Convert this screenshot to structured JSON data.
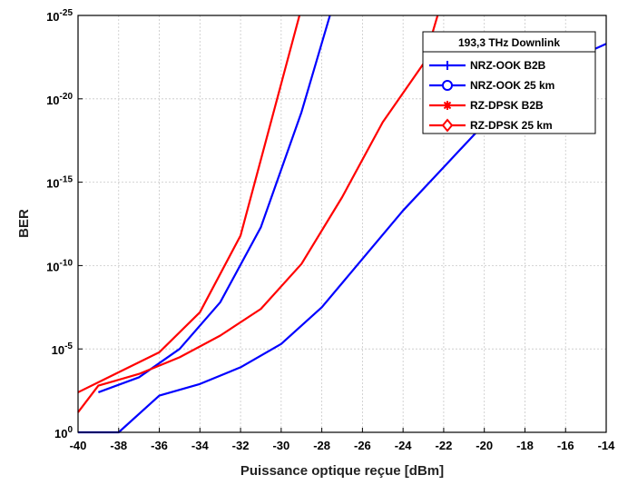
{
  "chart_data": {
    "type": "line",
    "title": "",
    "xlabel": "Puissance optique reçue [dBm]",
    "ylabel": "BER",
    "xlim": [
      -40,
      -14
    ],
    "ylog": true,
    "ylim_exponent": [
      -25,
      0
    ],
    "x_ticks": [
      -40,
      -38,
      -36,
      -34,
      -32,
      -30,
      -28,
      -26,
      -24,
      -22,
      -20,
      -18,
      -16,
      -14
    ],
    "y_tick_exponents": [
      0,
      -5,
      -10,
      -15,
      -20,
      -25
    ],
    "y_tick_base": "10",
    "grid": true,
    "legend": {
      "title": "193,3 THz Downlink",
      "placement": "top-right"
    },
    "series": [
      {
        "name": "NRZ-OOK B2B",
        "color": "#0000ff",
        "marker": "plus",
        "points": [
          [
            -39,
            -2.4
          ],
          [
            -37,
            -3.3
          ],
          [
            -35,
            -5.0
          ],
          [
            -33,
            -7.8
          ],
          [
            -31,
            -12.3
          ],
          [
            -29,
            -19.2
          ],
          [
            -27.6,
            -25
          ]
        ]
      },
      {
        "name": "NRZ-OOK 25 km",
        "color": "#0000ff",
        "marker": "circle",
        "points": [
          [
            -40,
            0
          ],
          [
            -38,
            0
          ],
          [
            -36,
            -2.2
          ],
          [
            -34,
            -2.9
          ],
          [
            -32,
            -3.9
          ],
          [
            -30,
            -5.3
          ],
          [
            -28,
            -7.5
          ],
          [
            -26,
            -10.4
          ],
          [
            -24,
            -13.3
          ],
          [
            -22,
            -15.9
          ],
          [
            -20,
            -18.5
          ],
          [
            -18,
            -20.6
          ],
          [
            -16,
            -22.2
          ],
          [
            -14,
            -23.3
          ]
        ]
      },
      {
        "name": "RZ-DPSK B2B",
        "color": "#ff0000",
        "marker": "asterisk",
        "points": [
          [
            -40,
            -2.4
          ],
          [
            -38,
            -3.6
          ],
          [
            -36,
            -4.8
          ],
          [
            -34,
            -7.2
          ],
          [
            -32,
            -11.8
          ],
          [
            -30,
            -20.9
          ],
          [
            -29.1,
            -25
          ]
        ]
      },
      {
        "name": "RZ-DPSK 25 km",
        "color": "#ff0000",
        "marker": "diamond",
        "points": [
          [
            -40,
            -1.2
          ],
          [
            -39,
            -2.8
          ],
          [
            -37,
            -3.5
          ],
          [
            -35,
            -4.5
          ],
          [
            -33,
            -5.8
          ],
          [
            -31,
            -7.4
          ],
          [
            -29,
            -10.1
          ],
          [
            -27,
            -14.1
          ],
          [
            -25,
            -18.6
          ],
          [
            -23,
            -22.1
          ],
          [
            -22.3,
            -25
          ]
        ]
      }
    ]
  }
}
